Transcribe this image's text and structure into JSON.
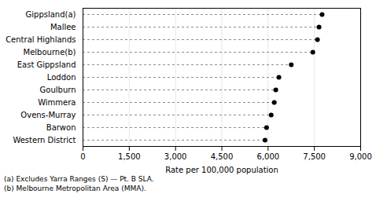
{
  "chart_data": {
    "type": "dot",
    "orientation": "horizontal",
    "categories": [
      "Western District",
      "Barwon",
      "Ovens-Murray",
      "Wimmera",
      "Goulburn",
      "Loddon",
      "East Gippsland",
      "Melbourne(b)",
      "Central Highlands",
      "Mallee",
      "Gippsland(a)"
    ],
    "values": [
      5900,
      5950,
      6100,
      6200,
      6250,
      6350,
      6750,
      7450,
      7600,
      7650,
      7750
    ],
    "color": "#000000",
    "xlabel": "Rate per 100,000 population",
    "xlim": [
      0,
      9000
    ],
    "xticks": [
      0,
      {
        "value": 1500,
        "label": "1,500"
      },
      {
        "value": 3000,
        "label": "3,000"
      },
      {
        "value": 4500,
        "label": "4,500"
      },
      {
        "value": 6000,
        "label": "6,000"
      },
      {
        "value": 7500,
        "label": "7,500"
      },
      {
        "value": 9000,
        "label": "9,000"
      }
    ],
    "grid": true,
    "annotations": [
      "(a) Excludes Yarra Ranges (S) — Pt. B SLA.",
      "(b) Melbourne Metropolitan Area (MMA)."
    ]
  }
}
